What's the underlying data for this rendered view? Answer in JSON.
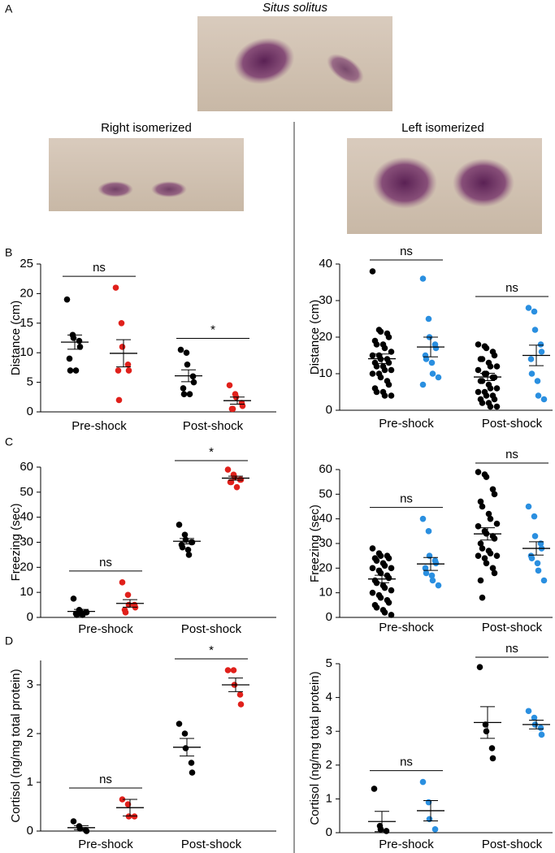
{
  "panel_labels": [
    "A",
    "B",
    "C",
    "D"
  ],
  "images": [
    {
      "title": "Situs solitus",
      "color": "#000000"
    },
    {
      "title": "Right isomerized",
      "color": "#e0201b"
    },
    {
      "title": "Left isomerized",
      "color": "#2a8fe0"
    }
  ],
  "chart_data": [
    {
      "type": "strip",
      "ylabel": "Distance (cm)",
      "categories": [
        "Pre-shock",
        "Post-shock"
      ],
      "ylim": [
        0,
        25
      ],
      "yticks": [
        0,
        5,
        10,
        15,
        20,
        25
      ],
      "annotations": [
        "ns",
        "*"
      ],
      "series": [
        {
          "color": "#000000",
          "points": [
            [
              19,
              13,
              12.5,
              12,
              11,
              9,
              7,
              7
            ],
            [
              10.5,
              10,
              8,
              6,
              5,
              4,
              3,
              3
            ]
          ],
          "mean": [
            11.8,
            6.1
          ],
          "sem": [
            1.2,
            1.0
          ]
        },
        {
          "color": "#e0201b",
          "points": [
            [
              21,
              15,
              11,
              8,
              7,
              7,
              2
            ],
            [
              4.5,
              3,
              2.5,
              1.5,
              1,
              0.5,
              0.5
            ]
          ],
          "mean": [
            9.9,
            1.9
          ],
          "sem": [
            2.3,
            0.6
          ]
        }
      ]
    },
    {
      "type": "strip",
      "ylabel": "Distance (cm)",
      "categories": [
        "Pre-shock",
        "Post-shock"
      ],
      "ylim": [
        0,
        40
      ],
      "yticks": [
        0,
        10,
        20,
        30,
        40
      ],
      "annotations": [
        "ns",
        "ns"
      ],
      "series": [
        {
          "color": "#000000",
          "points": [
            [
              38,
              22,
              21.5,
              21,
              20,
              19,
              18,
              18,
              17,
              16,
              15,
              15,
              14,
              14,
              13,
              13,
              12,
              12,
              11,
              11,
              10,
              10,
              9,
              8,
              7,
              6,
              5,
              5,
              4,
              4
            ],
            [
              18,
              17.5,
              17,
              16,
              15,
              14,
              14,
              13,
              12,
              12,
              11,
              10,
              10,
              9,
              9,
              8,
              8,
              7,
              6,
              6,
              5,
              5,
              4,
              4,
              3,
              3,
              2,
              2,
              1,
              1
            ]
          ],
          "mean": [
            14.1,
            9.1
          ],
          "sem": [
            1.3,
            1.0
          ]
        },
        {
          "color": "#2a8fe0",
          "points": [
            [
              36,
              25,
              20,
              18,
              17,
              15,
              14,
              13,
              10,
              9,
              7
            ],
            [
              28,
              27,
              22,
              18,
              16,
              14,
              10,
              8,
              4,
              3
            ]
          ],
          "mean": [
            17.3,
            15
          ],
          "sem": [
            2.7,
            2.8
          ]
        }
      ]
    },
    {
      "type": "strip",
      "ylabel": "Freezing (sec)",
      "categories": [
        "Pre-shock",
        "Post-shock"
      ],
      "ylim": [
        0,
        60
      ],
      "yticks": [
        0,
        10,
        20,
        30,
        40,
        50,
        60
      ],
      "annotations": [
        "ns",
        "*"
      ],
      "series": [
        {
          "color": "#000000",
          "points": [
            [
              7.5,
              3,
              2.5,
              2,
              2,
              1.5,
              1,
              1
            ],
            [
              37,
              33,
              31,
              30,
              30,
              29,
              28,
              27,
              25
            ]
          ],
          "mean": [
            2.4,
            30.4
          ],
          "sem": [
            0.8,
            1.1
          ]
        },
        {
          "color": "#e0201b",
          "points": [
            [
              14,
              9,
              5,
              5,
              4,
              3,
              2
            ],
            [
              59,
              57,
              56,
              55,
              55,
              54,
              54,
              52
            ]
          ],
          "mean": [
            5.6,
            55.6
          ],
          "sem": [
            1.5,
            0.8
          ]
        }
      ]
    },
    {
      "type": "strip",
      "ylabel": "Freezing (sec)",
      "categories": [
        "Pre-shock",
        "Post-shock"
      ],
      "ylim": [
        0,
        60
      ],
      "yticks": [
        0,
        10,
        20,
        30,
        40,
        50,
        60
      ],
      "annotations": [
        "ns",
        "ns"
      ],
      "series": [
        {
          "color": "#000000",
          "points": [
            [
              28,
              26,
              25,
              25,
              24,
              24,
              23,
              22,
              21,
              20,
              20,
              19,
              18,
              17,
              16,
              15,
              14,
              13,
              12,
              11,
              10,
              9,
              8,
              7,
              6,
              5,
              4,
              3,
              2,
              1
            ],
            [
              59,
              58,
              57,
              52,
              50,
              47,
              45,
              42,
              40,
              38,
              37,
              35,
              34,
              33,
              32,
              30,
              28,
              27,
              26,
              25,
              25,
              24,
              22,
              20,
              18,
              15,
              8
            ]
          ],
          "mean": [
            15.6,
            33.9
          ],
          "sem": [
            1.5,
            2.5
          ]
        },
        {
          "color": "#2a8fe0",
          "points": [
            [
              40,
              35,
              25,
              23,
              22,
              20,
              18,
              17,
              15,
              13
            ],
            [
              45,
              41,
              33,
              30,
              28,
              25,
              24,
              22,
              19,
              15
            ]
          ],
          "mean": [
            21.7,
            28
          ],
          "sem": [
            2.6,
            2.7
          ]
        }
      ]
    },
    {
      "type": "strip",
      "ylabel": "Cortisol (ng/mg total protein)",
      "categories": [
        "Pre-shock",
        "Post-shock"
      ],
      "ylim": [
        0,
        3.5
      ],
      "yticks": [
        0,
        1,
        2,
        3
      ],
      "annotations": [
        "ns",
        "*"
      ],
      "series": [
        {
          "color": "#000000",
          "points": [
            [
              0.2,
              0.1,
              0.05,
              0.02,
              0
            ],
            [
              2.2,
              2.0,
              1.7,
              1.4,
              1.2
            ]
          ],
          "mean": [
            0.07,
            1.72
          ],
          "sem": [
            0.04,
            0.18
          ]
        },
        {
          "color": "#e0201b",
          "points": [
            [
              0.65,
              0.55,
              0.3,
              0.3
            ],
            [
              3.3,
              3.3,
              3.0,
              2.8,
              2.6
            ]
          ],
          "mean": [
            0.48,
            3.0
          ],
          "sem": [
            0.17,
            0.14
          ]
        }
      ]
    },
    {
      "type": "strip",
      "ylabel": "Cortisol (ng/mg total protein)",
      "categories": [
        "Pre-shock",
        "Post-shock"
      ],
      "ylim": [
        0,
        5
      ],
      "yticks": [
        0,
        1,
        2,
        3,
        4,
        5
      ],
      "annotations": [
        "ns",
        "ns"
      ],
      "series": [
        {
          "color": "#000000",
          "points": [
            [
              1.3,
              0.2,
              0.1,
              0.05
            ],
            [
              4.9,
              3.2,
              3.0,
              2.5,
              2.2
            ]
          ],
          "mean": [
            0.33,
            3.26
          ],
          "sem": [
            0.3,
            0.47
          ]
        },
        {
          "color": "#2a8fe0",
          "points": [
            [
              1.5,
              0.9,
              0.4,
              0.1
            ],
            [
              3.6,
              3.4,
              3.2,
              3.1,
              2.9
            ]
          ],
          "mean": [
            0.65,
            3.2
          ],
          "sem": [
            0.3,
            0.13
          ]
        }
      ]
    }
  ]
}
